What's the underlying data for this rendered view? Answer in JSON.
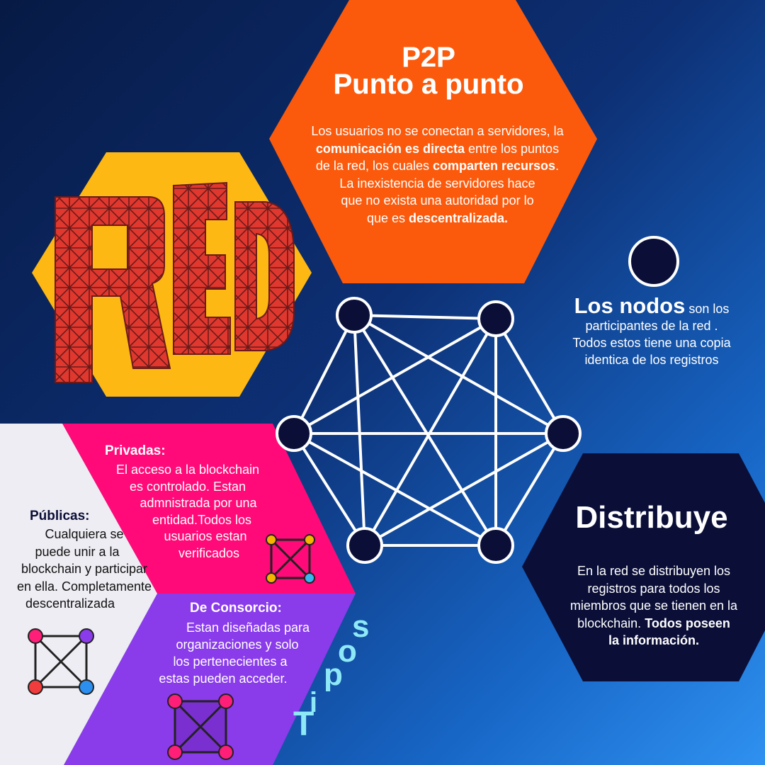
{
  "colors": {
    "orange": "#fb5a0c",
    "yellow": "#fdb813",
    "red_letters": "#e0382e",
    "navy": "#0b0f38",
    "pink": "#ff0a78",
    "purple": "#8a3bea",
    "white_panel": "#eeedf3",
    "tipos_cyan": "#8ee9f7"
  },
  "p2p": {
    "title_line1": "P2P",
    "title_line2": "Punto a punto",
    "desc": [
      {
        "t": "Los usuarios no se conectan a servidores, la",
        "b": ""
      },
      {
        "b": "comunicación es directa",
        "t": " entre los puntos"
      },
      {
        "t": "de la red, los cuales ",
        "b": "comparten recursos",
        "t2": "."
      },
      {
        "t": "La inexistencia  de servidores hace",
        "b": ""
      },
      {
        "t": "que no exista una  autoridad por lo",
        "b": ""
      },
      {
        "t": "que es ",
        "b": "descentralizada."
      }
    ]
  },
  "red_logo": {
    "text": "RED"
  },
  "nodos": {
    "title": "Los nodos",
    "rest": " son los",
    "line2": "participantes de la red .",
    "line3": "Todos estos tiene una copia",
    "line4": "identica de los registros"
  },
  "distribuye": {
    "title": "Distribuye",
    "line1": "En la red se distribuyen los",
    "line2": "registros para todos los",
    "line3": "miembros que se tienen en la",
    "line4_plain": "blockchain. ",
    "line4_bold": "Todos poseen",
    "line5_bold": "la información."
  },
  "privadas": {
    "title": "Privadas:",
    "lines": [
      "El acceso a la blockchain",
      "es controlado. Estan",
      "admnistrada por una",
      "entidad.Todos los",
      "usuarios estan",
      "verificados"
    ]
  },
  "publicas": {
    "title": "Públicas:",
    "lines": [
      "Cualquiera se",
      "puede unir a la",
      "blockchain y participar",
      "en ella. Completamente",
      "descentralizada"
    ]
  },
  "consorcio": {
    "title": "De Consorcio:",
    "lines": [
      "Estan diseñadas para",
      "organizaciones y solo",
      "los pertenecientes a",
      "estas pueden acceder."
    ]
  },
  "tipos": {
    "letters": [
      "T",
      "i",
      "p",
      "o",
      "s"
    ]
  },
  "icons": {
    "network_graph": "network-graph-icon",
    "private_square": "verified-network-icon",
    "public_square": "public-network-icon",
    "consortium_square": "consortium-network-icon",
    "node": "node-circle-icon"
  }
}
